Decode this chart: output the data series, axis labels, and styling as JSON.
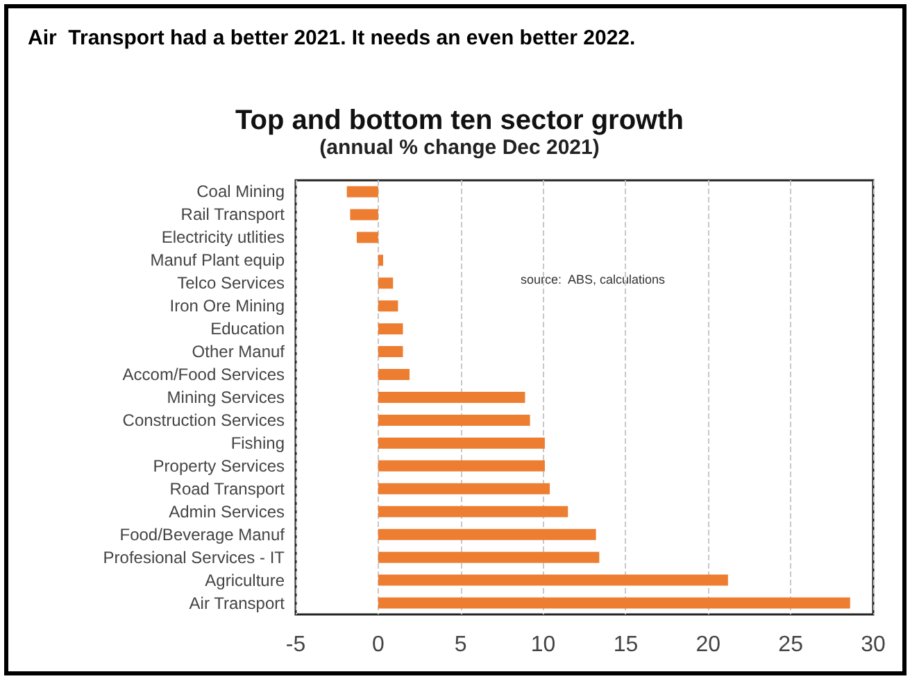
{
  "chart_data": {
    "type": "bar",
    "orientation": "horizontal",
    "title": "Top and bottom ten sector growth",
    "subtitle": "(annual % change Dec 2021)",
    "annotations": [
      "Air  Transport had a better 2021. It needs an even better 2022.",
      "source:  ABS, calculations"
    ],
    "categories": [
      "Coal Mining",
      "Rail Transport",
      "Electricity utlities",
      "Manuf Plant equip",
      "Telco Services",
      "Iron Ore Mining",
      "Education",
      "Other Manuf",
      "Accom/Food Services",
      "Mining Services",
      "Construction Services",
      "Fishing",
      "Property Services",
      "Road Transport",
      "Admin Services",
      "Food/Beverage Manuf",
      "Profesional Services - IT",
      "Agriculture",
      "Air Transport"
    ],
    "values": [
      -1.9,
      -1.7,
      -1.3,
      0.3,
      0.9,
      1.2,
      1.5,
      1.5,
      1.9,
      8.9,
      9.2,
      10.1,
      10.1,
      10.4,
      11.5,
      13.2,
      13.4,
      21.2,
      28.6
    ],
    "color": "#ed7d31",
    "xlim": [
      -5,
      30
    ],
    "xticks": [
      -5,
      0,
      5,
      10,
      15,
      20,
      25,
      30
    ],
    "grid": "x"
  }
}
